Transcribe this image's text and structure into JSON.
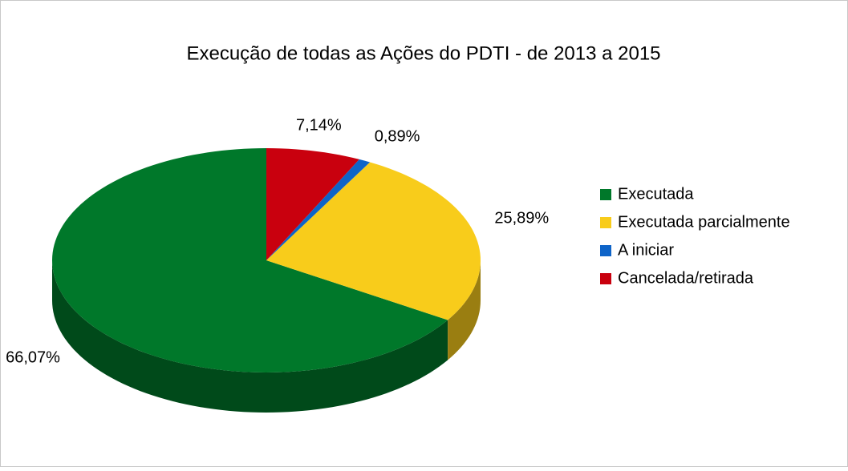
{
  "chart_data": {
    "type": "pie",
    "title": "Execução de todas as Ações do PDTI - de 2013 a 2015",
    "categories": [
      "Executada",
      "Executada parcialmente",
      "A iniciar",
      "Cancelada/retirada"
    ],
    "values": [
      66.07,
      25.89,
      0.89,
      7.14
    ],
    "value_labels": [
      "66,07%",
      "25,89%",
      "0,89%",
      "7,14%"
    ],
    "colors": [
      "#00782a",
      "#f8cc1b",
      "#0e64c8",
      "#c9000e"
    ],
    "legend": "right"
  }
}
